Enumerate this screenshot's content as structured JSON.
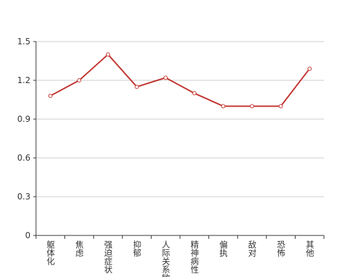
{
  "chart_data": {
    "type": "line",
    "categories": [
      "躯体化",
      "焦虑",
      "强迫症状",
      "抑郁",
      "人际关系敏感",
      "精神病性",
      "偏执",
      "敌对",
      "恐怖",
      "其他"
    ],
    "series": [
      {
        "color": "#c23531",
        "values": [
          1.08,
          1.2,
          1.4,
          1.15,
          1.22,
          1.1,
          1.0,
          1.0,
          1.0,
          1.29
        ]
      }
    ],
    "ylim": [
      0,
      1.5
    ],
    "yticks": [
      0,
      0.3,
      0.6,
      0.9,
      1.2,
      1.5
    ],
    "grid": true
  }
}
